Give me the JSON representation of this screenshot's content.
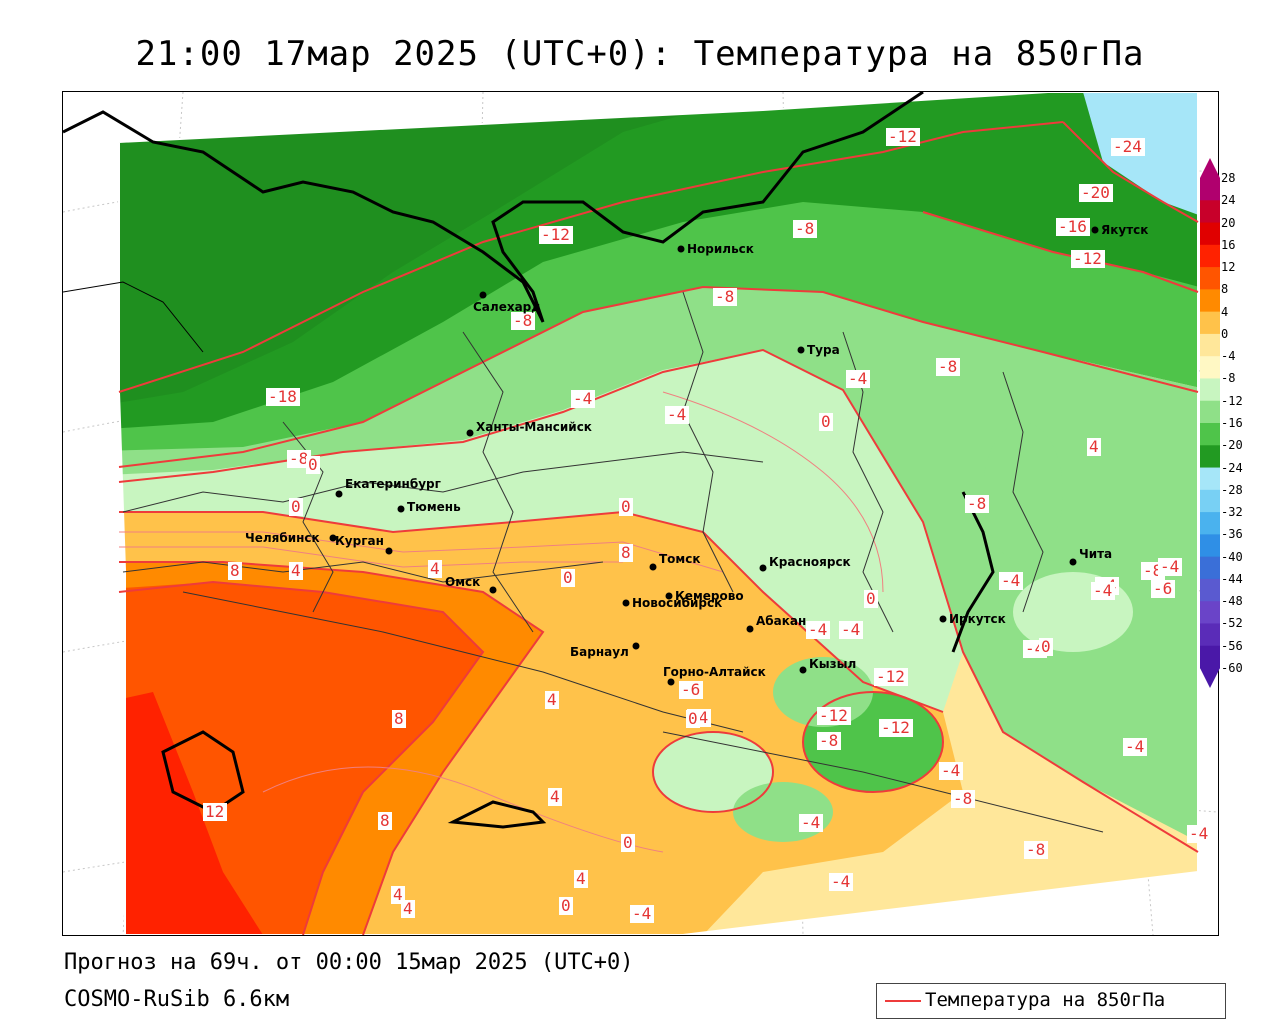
{
  "title": "21:00 17мар 2025 (UTC+0): Температура на 850гПа",
  "forecast_line": "Прогноз на 69ч. от 00:00 15мар 2025 (UTC+0)",
  "model_line": "COSMO-RuSib 6.6км",
  "legend": {
    "label": "Температура на 850гПа",
    "line_color": "#ee3b3b"
  },
  "colorbar": {
    "labels": [
      "28",
      "24",
      "20",
      "16",
      "12",
      "8",
      "4",
      "0",
      "-4",
      "-8",
      "-12",
      "-16",
      "-20",
      "-24",
      "-28",
      "-32",
      "-36",
      "-40",
      "-44",
      "-48",
      "-52",
      "-56",
      "-60"
    ],
    "colors": [
      "#b0006e",
      "#c8002a",
      "#e00000",
      "#ff2200",
      "#ff5500",
      "#ff8a00",
      "#ffc24a",
      "#ffe79a",
      "#fff8c4",
      "#c8f5c0",
      "#8fe088",
      "#4fc44a",
      "#229a22",
      "#a6e6f8",
      "#78d0f4",
      "#4ab2ee",
      "#2f8fe6",
      "#3a6fd8",
      "#5a5ad0",
      "#6a44c8",
      "#5a2cb8",
      "#4a18a8"
    ]
  },
  "cities": [
    {
      "name": "Салехард"
    },
    {
      "name": "Норильск"
    },
    {
      "name": "Якутск"
    },
    {
      "name": "Тура"
    },
    {
      "name": "Ханты-Мансийск"
    },
    {
      "name": "Екатеринбург"
    },
    {
      "name": "Тюмень"
    },
    {
      "name": "Челябинск"
    },
    {
      "name": "Курган"
    },
    {
      "name": "Омск"
    },
    {
      "name": "Новосибирск"
    },
    {
      "name": "Томск"
    },
    {
      "name": "Кемерово"
    },
    {
      "name": "Красноярск"
    },
    {
      "name": "Барнаул"
    },
    {
      "name": "Абакан"
    },
    {
      "name": "Иркутск"
    },
    {
      "name": "Чита"
    },
    {
      "name": "Кызыл"
    },
    {
      "name": "Горно-Алтайск"
    }
  ],
  "contour_labels": [
    "-12",
    "-24",
    "-20",
    "-16",
    "-12",
    "-12",
    "-8",
    "-8",
    "-8",
    "-18",
    "-8",
    "-4",
    "-4",
    "-4",
    "-8",
    "0",
    "4",
    "0",
    "0",
    "0",
    "-8",
    "-8",
    "-4",
    "-4",
    "8",
    "4",
    "0",
    "-4",
    "-4",
    "-6",
    "-12",
    "-12",
    "-12",
    "-8",
    "-4",
    "-4",
    "-8",
    "-4",
    "-4",
    "-8",
    "-4",
    "0",
    "-4",
    "-4",
    "0",
    "0",
    "-4",
    "4",
    "8",
    "4",
    "12",
    "8",
    "4",
    "0",
    "4",
    "4",
    "8",
    "4",
    "0",
    "-4",
    "-4",
    "-6"
  ]
}
